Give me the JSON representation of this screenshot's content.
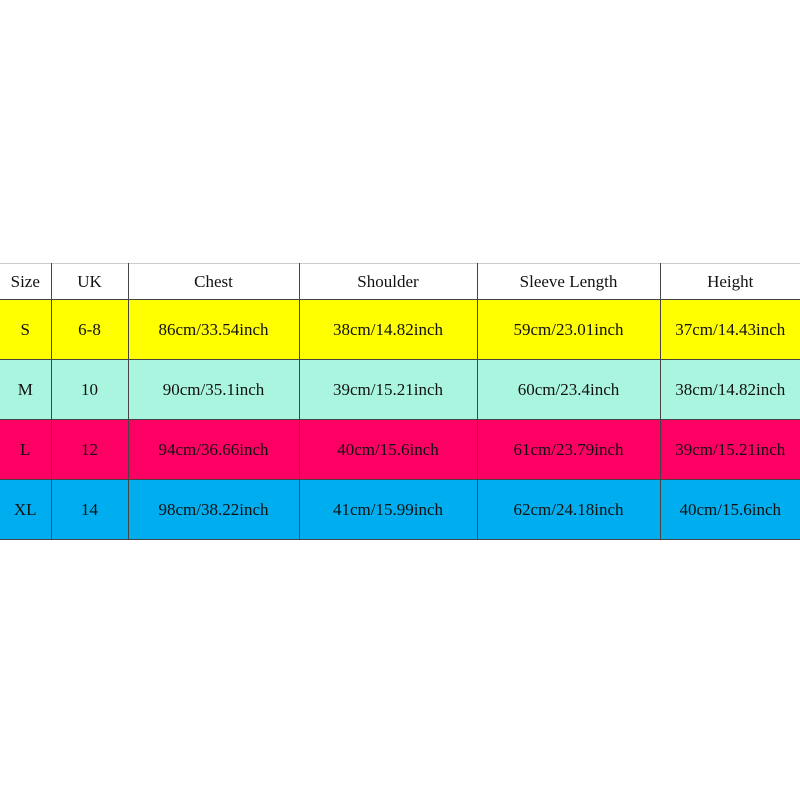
{
  "headers": [
    "Size",
    "UK",
    "Chest",
    "Shoulder",
    "Sleeve Length",
    "Height"
  ],
  "rows": [
    {
      "color": "#ffff00",
      "cells": [
        "S",
        "6-8",
        "86cm/33.54inch",
        "38cm/14.82inch",
        "59cm/23.01inch",
        "37cm/14.43inch"
      ]
    },
    {
      "color": "#aaf5e0",
      "cells": [
        "M",
        "10",
        "90cm/35.1inch",
        "39cm/15.21inch",
        "60cm/23.4inch",
        "38cm/14.82inch"
      ]
    },
    {
      "color": "#fe0064",
      "cells": [
        "L",
        "12",
        "94cm/36.66inch",
        "40cm/15.6inch",
        "61cm/23.79inch",
        "39cm/15.21inch"
      ]
    },
    {
      "color": "#00aeef",
      "cells": [
        "XL",
        "14",
        "98cm/38.22inch",
        "41cm/15.99inch",
        "62cm/24.18inch",
        "40cm/15.6inch"
      ]
    }
  ]
}
